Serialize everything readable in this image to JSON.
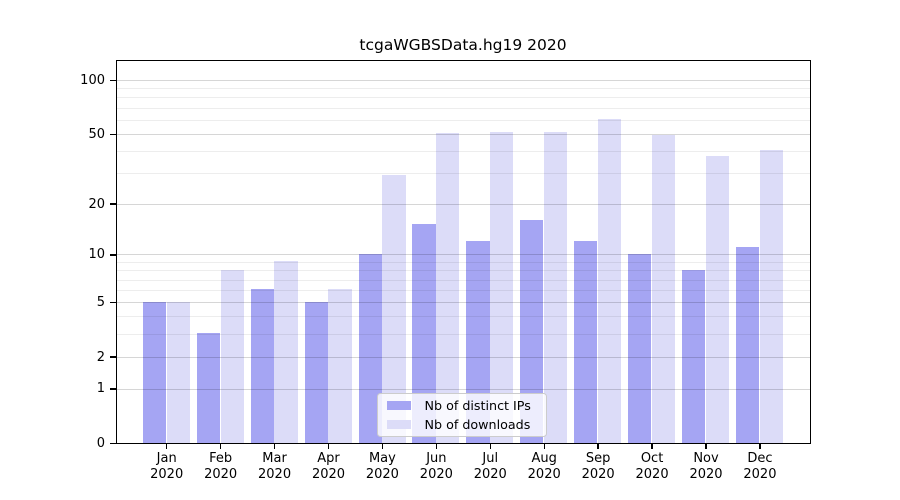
{
  "chart_data": {
    "type": "bar",
    "title": "tcgaWGBSData.hg19 2020",
    "categories": [
      "Jan",
      "Feb",
      "Mar",
      "Apr",
      "May",
      "Jun",
      "Jul",
      "Aug",
      "Sep",
      "Oct",
      "Nov",
      "Dec"
    ],
    "category_sub_label": "2020",
    "series": [
      {
        "name": "Nb of distinct IPs",
        "color": "#a5a5f3",
        "values": [
          5,
          3,
          6,
          5,
          10,
          15,
          12,
          16,
          12,
          10,
          8,
          11
        ]
      },
      {
        "name": "Nb of downloads",
        "color": "#dcdcf8",
        "values": [
          5,
          8,
          9,
          6,
          29,
          50,
          51,
          51,
          60,
          49,
          37,
          40
        ]
      }
    ],
    "yscale": "symlog",
    "ylim": [
      0,
      130
    ],
    "ytick_values": [
      0,
      1,
      2,
      5,
      10,
      20,
      50,
      100
    ],
    "ytick_labels": [
      "0",
      "1",
      "2",
      "5",
      "10",
      "20",
      "50",
      "100"
    ],
    "minor_ytick_values": [
      3,
      4,
      6,
      7,
      8,
      9,
      30,
      40,
      60,
      70,
      80,
      90
    ],
    "grid": true,
    "legend_position": "lower center"
  },
  "colors": {
    "background": "#ffffff",
    "spine": "#000000",
    "grid_major": "rgba(0,0,0,0.16)",
    "grid_minor": "rgba(0,0,0,0.07)"
  }
}
